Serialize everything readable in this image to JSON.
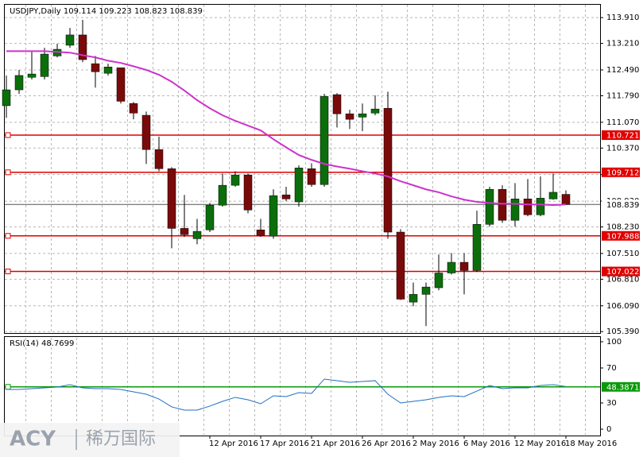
{
  "chart_data": {
    "type": "candlestick",
    "title": "USDJPY,Daily 109.114 109.223 108.823 108.839",
    "categories": [
      null,
      null,
      null,
      null,
      null,
      null,
      null,
      null,
      null,
      null,
      null,
      null,
      null,
      null,
      null,
      null,
      "12 Apr 2016",
      null,
      null,
      null,
      "17 Apr 2016",
      null,
      null,
      null,
      "21 Apr 2016",
      null,
      null,
      null,
      "26 Apr 2016",
      null,
      null,
      null,
      "2 May 2016",
      null,
      null,
      null,
      "6 May 2016",
      null,
      null,
      null,
      "12 May 2016",
      null,
      null,
      null,
      "18 May 2016"
    ],
    "open": [
      111.52,
      111.95,
      112.29,
      112.31,
      112.87,
      113.16,
      113.44,
      112.66,
      112.4,
      112.55,
      111.58,
      111.26,
      110.33,
      109.81,
      108.19,
      107.91,
      108.15,
      108.82,
      109.36,
      109.64,
      108.15,
      107.98,
      109.1,
      108.91,
      109.81,
      109.38,
      111.82,
      111.3,
      111.21,
      111.32,
      111.45,
      108.09,
      106.19,
      106.4,
      106.58,
      106.98,
      107.27,
      107.05,
      108.3,
      109.25,
      108.41,
      108.99,
      108.56,
      108.99,
      109.114
    ],
    "high": [
      112.34,
      112.49,
      112.98,
      113.09,
      113.2,
      113.63,
      113.85,
      112.87,
      112.66,
      112.55,
      111.62,
      111.36,
      110.68,
      109.85,
      109.1,
      108.45,
      108.88,
      109.68,
      109.74,
      109.68,
      108.45,
      109.25,
      109.32,
      109.9,
      109.96,
      111.84,
      111.86,
      111.41,
      111.58,
      111.8,
      111.9,
      108.17,
      106.72,
      106.72,
      107.48,
      107.52,
      107.52,
      108.67,
      109.32,
      109.36,
      109.42,
      109.53,
      109.6,
      109.68,
      109.223
    ],
    "low": [
      111.19,
      111.84,
      112.23,
      112.23,
      112.83,
      113.09,
      112.7,
      112.01,
      112.34,
      111.58,
      111.15,
      109.94,
      109.74,
      107.65,
      107.96,
      107.76,
      108.09,
      108.78,
      109.32,
      108.6,
      107.96,
      107.91,
      108.93,
      108.78,
      109.32,
      109.32,
      110.93,
      110.89,
      110.83,
      111.26,
      107.91,
      106.25,
      106.08,
      105.54,
      106.51,
      106.94,
      106.4,
      107.01,
      108.24,
      108.34,
      108.24,
      108.52,
      108.52,
      108.97,
      108.823
    ],
    "close": [
      111.95,
      112.34,
      112.38,
      112.92,
      113.05,
      113.44,
      112.77,
      112.44,
      112.57,
      111.64,
      111.32,
      110.33,
      109.81,
      108.19,
      108.02,
      108.11,
      108.82,
      109.36,
      109.64,
      108.69,
      108.0,
      109.08,
      108.99,
      109.83,
      109.38,
      111.77,
      111.3,
      111.15,
      111.3,
      111.43,
      108.09,
      106.27,
      106.4,
      106.6,
      106.98,
      107.27,
      107.05,
      108.3,
      109.25,
      108.41,
      108.99,
      108.56,
      109.01,
      109.17,
      108.839
    ],
    "up_color": "#0b6e0b",
    "down_color": "#7a0a0a",
    "ma": {
      "color": "#cc33cc",
      "values": [
        113.0,
        113.0,
        113.0,
        113.0,
        112.98,
        112.96,
        112.89,
        112.83,
        112.74,
        112.68,
        112.59,
        112.49,
        112.36,
        112.17,
        111.93,
        111.67,
        111.45,
        111.26,
        111.11,
        110.98,
        110.85,
        110.61,
        110.39,
        110.18,
        110.05,
        109.94,
        109.87,
        109.81,
        109.74,
        109.68,
        109.6,
        109.47,
        109.36,
        109.25,
        109.17,
        109.06,
        108.97,
        108.91,
        108.88,
        108.86,
        108.86,
        108.84,
        108.84,
        108.82,
        108.84
      ]
    },
    "levels": [
      {
        "value": 110.721,
        "label": "110.721"
      },
      {
        "value": 109.712,
        "label": "109.712"
      },
      {
        "value": 107.988,
        "label": "107.988"
      },
      {
        "value": 107.022,
        "label": "107.022"
      }
    ],
    "level_color": "#e00000",
    "current": {
      "value": 108.839,
      "label": "108.839"
    },
    "ylim": [
      105.33,
      114.28
    ],
    "yticks": [
      {
        "value": 113.91,
        "label": "113.910"
      },
      {
        "value": 113.21,
        "label": "113.210"
      },
      {
        "value": 112.49,
        "label": "112.490"
      },
      {
        "value": 111.79,
        "label": "111.790"
      },
      {
        "value": 111.07,
        "label": "111.070"
      },
      {
        "value": 110.37,
        "label": "110.370"
      },
      {
        "value": 109.65,
        "label": "109.650"
      },
      {
        "value": 108.93,
        "label": "108.930"
      },
      {
        "value": 108.23,
        "label": "108.230"
      },
      {
        "value": 107.51,
        "label": "107.510"
      },
      {
        "value": 106.81,
        "label": "106.810"
      },
      {
        "value": 106.09,
        "label": "106.090"
      },
      {
        "value": 105.39,
        "label": "105.390"
      }
    ],
    "grid": true,
    "rsi": {
      "label": "RSI(14) 48.7699",
      "color": "#1f6fc0",
      "values": [
        45.5,
        45.5,
        46.4,
        47.3,
        48.2,
        50.9,
        47.3,
        46.4,
        46.4,
        45.5,
        42.7,
        40.0,
        34.5,
        25.5,
        21.8,
        21.8,
        26.4,
        31.8,
        36.4,
        33.6,
        29.1,
        38.2,
        37.3,
        41.8,
        40.9,
        57.3,
        55.5,
        53.6,
        54.5,
        55.5,
        40.0,
        30.0,
        31.8,
        33.6,
        36.4,
        38.2,
        37.3,
        43.6,
        50.0,
        46.4,
        47.3,
        47.3,
        50.0,
        50.9,
        48.77
      ],
      "ylim": [
        0,
        100
      ],
      "yticks": [
        100,
        70,
        30,
        0
      ],
      "level": {
        "value": 48.3871,
        "label": "48.3871",
        "color": "#0a9a0a"
      }
    },
    "watermark": {
      "brand": "ACY",
      "name": "稀万国际"
    }
  }
}
